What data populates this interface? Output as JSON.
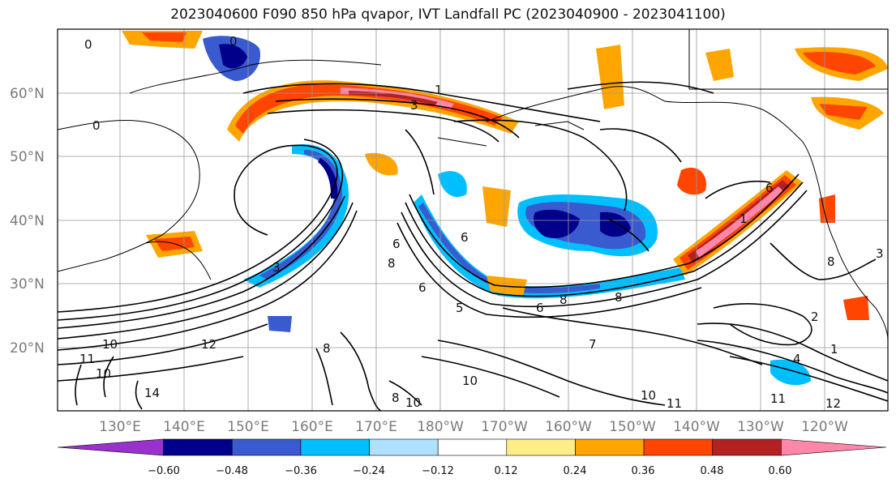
{
  "title": "2023040600 F090 850 hPa qvapor, IVT Landfall PC (2023040900 - 2023041100)",
  "map": {
    "lat_labels": [
      "60°N",
      "50°N",
      "40°N",
      "30°N",
      "20°N"
    ],
    "lon_labels": [
      "130°E",
      "140°E",
      "150°E",
      "160°E",
      "170°E",
      "180°W",
      "170°W",
      "160°W",
      "150°W",
      "140°W",
      "130°W",
      "120°W"
    ],
    "contour_labels": [
      "0",
      "0",
      "0",
      "1",
      "3",
      "3",
      "8",
      "6",
      "6",
      "5",
      "7",
      "8",
      "8",
      "10",
      "12",
      "11",
      "10",
      "14",
      "8",
      "10",
      "10",
      "10",
      "11",
      "8",
      "2",
      "1",
      "4",
      "11",
      "12",
      "3",
      "1",
      "8",
      "6",
      "6",
      "6"
    ]
  },
  "colorbar": {
    "ticks": [
      "−0.60",
      "−0.48",
      "−0.36",
      "−0.24",
      "−0.12",
      "0.12",
      "0.24",
      "0.36",
      "0.48",
      "0.60"
    ],
    "colors": [
      "#9932cc",
      "#00008b",
      "#3a5ad0",
      "#00bfff",
      "#b0e0ff",
      "#ffffff",
      "#ffee88",
      "#ffa500",
      "#ff4500",
      "#b22222",
      "#ff88aa"
    ]
  }
}
